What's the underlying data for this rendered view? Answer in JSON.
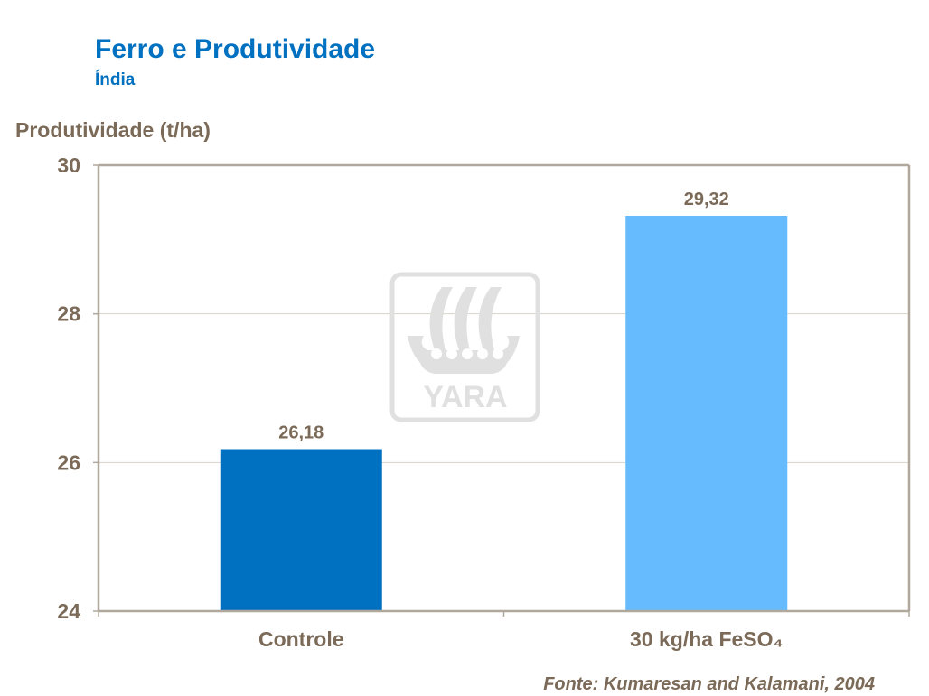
{
  "chart_data": {
    "type": "bar",
    "title": "Ferro e Produtividade",
    "subtitle": "Índia",
    "ylabel": "Produtividade (t/ha)",
    "xlabel": "",
    "categories": [
      "Controle",
      "30 kg/ha FeSO₄"
    ],
    "values": [
      26.18,
      29.32
    ],
    "data_labels": [
      "26,18",
      "29,32"
    ],
    "colors": [
      "#0070C0",
      "#66BBFF"
    ],
    "ylim": [
      24,
      30
    ],
    "yticks": [
      24,
      26,
      28,
      30
    ],
    "grid": true,
    "legend": "none"
  },
  "source": "Fonte: Kumaresan  and Kalamani,  2004",
  "watermark": {
    "logo_text": "YARA",
    "color": "#E0E0E0"
  },
  "colors": {
    "text": "#7B6A58",
    "title": "#0070C0",
    "axis": "#B0A89C",
    "grid": "#D8D2C8"
  }
}
